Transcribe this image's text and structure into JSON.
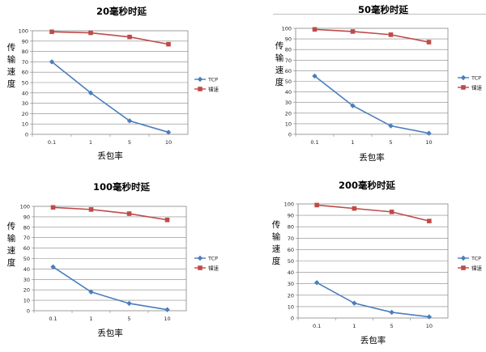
{
  "chart_data": [
    {
      "type": "line",
      "title": "20毫秒时延",
      "xlabel": "丢包率",
      "ylabel": "传输速度",
      "categories": [
        "0.1",
        "1",
        "5",
        "10"
      ],
      "ylim": [
        0,
        100
      ],
      "yticks": [
        "0",
        "10",
        "20",
        "30",
        "40",
        "50",
        "60",
        "70",
        "80",
        "90",
        "100"
      ],
      "grid": true,
      "legend_position": "right",
      "series": [
        {
          "name": "TCP",
          "color": "#4a7ebb",
          "marker": "diamond",
          "values": [
            70,
            40,
            13,
            2
          ]
        },
        {
          "name": "镭速",
          "color": "#be4b48",
          "marker": "square",
          "values": [
            99,
            98,
            94,
            87
          ]
        }
      ]
    },
    {
      "type": "line",
      "title": "50毫秒时延",
      "xlabel": "丢包率",
      "ylabel": "传输速度",
      "categories": [
        "0.1",
        "1",
        "5",
        "10"
      ],
      "ylim": [
        0,
        100
      ],
      "yticks": [
        "0",
        "10",
        "20",
        "30",
        "40",
        "50",
        "60",
        "70",
        "80",
        "90",
        "100"
      ],
      "grid": true,
      "legend_position": "right",
      "series": [
        {
          "name": "TCP",
          "color": "#4a7ebb",
          "marker": "diamond",
          "values": [
            55,
            27,
            8,
            1
          ]
        },
        {
          "name": "镭速",
          "color": "#be4b48",
          "marker": "square",
          "values": [
            99,
            97,
            94,
            87
          ]
        }
      ]
    },
    {
      "type": "line",
      "title": "100毫秒时延",
      "xlabel": "丢包率",
      "ylabel": "传输速度",
      "categories": [
        "0.1",
        "1",
        "5",
        "10"
      ],
      "ylim": [
        0,
        100
      ],
      "yticks": [
        "0",
        "10",
        "20",
        "30",
        "40",
        "50",
        "60",
        "70",
        "80",
        "90",
        "100"
      ],
      "grid": true,
      "legend_position": "right",
      "series": [
        {
          "name": "TCP",
          "color": "#4a7ebb",
          "marker": "diamond",
          "values": [
            42,
            18,
            7,
            1
          ]
        },
        {
          "name": "镭速",
          "color": "#be4b48",
          "marker": "square",
          "values": [
            99,
            97,
            93,
            87
          ]
        }
      ]
    },
    {
      "type": "line",
      "title": "200毫秒时延",
      "xlabel": "丢包率",
      "ylabel": "传输速度",
      "categories": [
        "0.1",
        "1",
        "5",
        "10"
      ],
      "ylim": [
        0,
        100
      ],
      "yticks": [
        "0",
        "10",
        "20",
        "30",
        "40",
        "50",
        "60",
        "70",
        "80",
        "90",
        "100"
      ],
      "grid": true,
      "legend_position": "right",
      "series": [
        {
          "name": "TCP",
          "color": "#4a7ebb",
          "marker": "diamond",
          "values": [
            31,
            13,
            5,
            1
          ]
        },
        {
          "name": "镭速",
          "color": "#be4b48",
          "marker": "square",
          "values": [
            99,
            96,
            93,
            85
          ]
        }
      ]
    }
  ]
}
